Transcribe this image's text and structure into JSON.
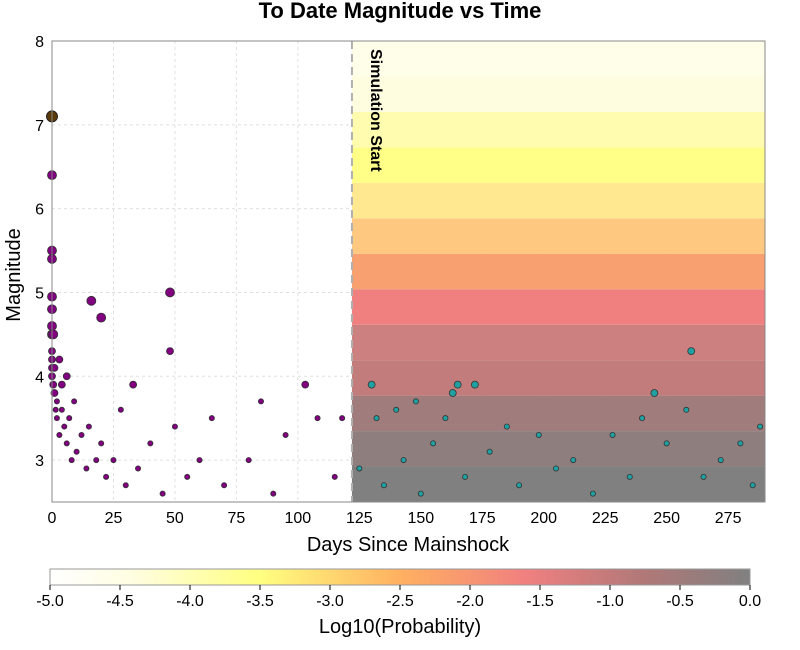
{
  "chart_data": {
    "type": "scatter",
    "title": "To Date Magnitude vs Time",
    "xlabel": "Days Since Mainshock",
    "ylabel": "Magnitude",
    "xlim": [
      0,
      290
    ],
    "ylim": [
      2.5,
      8
    ],
    "grid": true,
    "x_ticks": [
      "0",
      "25",
      "50",
      "75",
      "100",
      "125",
      "150",
      "175",
      "200",
      "225",
      "250",
      "275"
    ],
    "y_ticks": [
      "3",
      "4",
      "5",
      "6",
      "7",
      "8"
    ],
    "annotation": {
      "text": "Simulation Start",
      "x": 122
    },
    "colorbar": {
      "label": "Log10(Probability)",
      "ticks": [
        "-5.0",
        "-4.5",
        "-4.0",
        "-3.5",
        "-3.0",
        "-2.5",
        "-2.0",
        "-1.5",
        "-1.0",
        "-0.5",
        "0.0"
      ],
      "range": [
        -5.0,
        0.0
      ]
    },
    "mainshock": {
      "x": 0,
      "y": 7.1,
      "color": "#5a3a0a"
    },
    "series": [
      {
        "color": "#800080",
        "points": [
          [
            0,
            6.4
          ],
          [
            0,
            5.5
          ],
          [
            0,
            5.4
          ],
          [
            0,
            4.95
          ],
          [
            0,
            4.8
          ],
          [
            0,
            4.6
          ],
          [
            0,
            4.5
          ],
          [
            0,
            4.3
          ],
          [
            0,
            4.2
          ],
          [
            0,
            4.1
          ],
          [
            0,
            4.0
          ],
          [
            0.5,
            4.5
          ],
          [
            0.5,
            3.9
          ],
          [
            1,
            4.1
          ],
          [
            1,
            3.8
          ],
          [
            1.5,
            3.6
          ],
          [
            2,
            3.7
          ],
          [
            2,
            3.5
          ],
          [
            3,
            4.2
          ],
          [
            3,
            3.3
          ],
          [
            4,
            3.6
          ],
          [
            4,
            3.9
          ],
          [
            5,
            3.4
          ],
          [
            6,
            4.0
          ],
          [
            6,
            3.2
          ],
          [
            7,
            3.5
          ],
          [
            8,
            3.0
          ],
          [
            9,
            3.7
          ],
          [
            10,
            3.1
          ],
          [
            12,
            3.3
          ],
          [
            14,
            2.9
          ],
          [
            15,
            3.4
          ],
          [
            16,
            4.9
          ],
          [
            18,
            3.0
          ],
          [
            20,
            4.7
          ],
          [
            20,
            3.2
          ],
          [
            22,
            2.8
          ],
          [
            25,
            3.0
          ],
          [
            28,
            3.6
          ],
          [
            30,
            2.7
          ],
          [
            33,
            3.9
          ],
          [
            35,
            2.9
          ],
          [
            40,
            3.2
          ],
          [
            45,
            2.6
          ],
          [
            48,
            5.0
          ],
          [
            48,
            4.3
          ],
          [
            50,
            3.4
          ],
          [
            55,
            2.8
          ],
          [
            60,
            3.0
          ],
          [
            65,
            3.5
          ],
          [
            70,
            2.7
          ],
          [
            80,
            3.0
          ],
          [
            85,
            3.7
          ],
          [
            90,
            2.6
          ],
          [
            95,
            3.3
          ],
          [
            103,
            3.9
          ],
          [
            108,
            3.5
          ],
          [
            115,
            2.8
          ],
          [
            118,
            3.5
          ]
        ]
      },
      {
        "color": "#20a0a0",
        "points": [
          [
            125,
            2.9
          ],
          [
            130,
            3.9
          ],
          [
            132,
            3.5
          ],
          [
            135,
            2.7
          ],
          [
            140,
            3.6
          ],
          [
            143,
            3.0
          ],
          [
            148,
            3.7
          ],
          [
            150,
            2.6
          ],
          [
            155,
            3.2
          ],
          [
            160,
            3.5
          ],
          [
            163,
            3.8
          ],
          [
            165,
            3.9
          ],
          [
            168,
            2.8
          ],
          [
            172,
            3.9
          ],
          [
            178,
            3.1
          ],
          [
            185,
            3.4
          ],
          [
            190,
            2.7
          ],
          [
            198,
            3.3
          ],
          [
            205,
            2.9
          ],
          [
            212,
            3.0
          ],
          [
            220,
            2.6
          ],
          [
            228,
            3.3
          ],
          [
            235,
            2.8
          ],
          [
            240,
            3.5
          ],
          [
            245,
            3.8
          ],
          [
            250,
            3.2
          ],
          [
            258,
            3.6
          ],
          [
            260,
            4.3
          ],
          [
            265,
            2.8
          ],
          [
            272,
            3.0
          ],
          [
            280,
            3.2
          ],
          [
            285,
            2.7
          ],
          [
            288,
            3.4
          ]
        ]
      }
    ]
  }
}
